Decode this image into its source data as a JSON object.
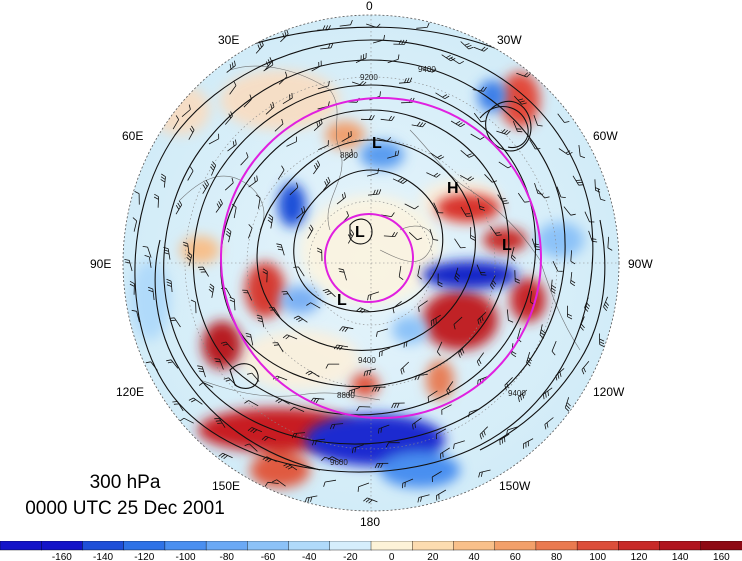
{
  "map": {
    "projection": "north-polar-stereographic",
    "level_label": "300 hPa",
    "time_label": "0000 UTC 25 Dec 2001",
    "longitude_labels": [
      "0",
      "30W",
      "60W",
      "90W",
      "120W",
      "150W",
      "180",
      "150E",
      "120E",
      "90E",
      "60E",
      "30E"
    ],
    "contour_labels": [
      "8800",
      "9200",
      "9400",
      "9600",
      "8800",
      "9400",
      "8800",
      "9400"
    ],
    "pressure_centers": [
      "H",
      "L",
      "L",
      "L",
      "L"
    ],
    "colors": {
      "circle": "#e020e0",
      "contour": "#111111",
      "coast": "#555555"
    }
  },
  "colorbar": {
    "ticks": [
      "-160",
      "-140",
      "-120",
      "-100",
      "-80",
      "-60",
      "-40",
      "-20",
      "0",
      "20",
      "40",
      "60",
      "80",
      "100",
      "120",
      "140",
      "160"
    ],
    "colors": [
      "#1414c8",
      "#1e4fd8",
      "#2e72e6",
      "#4a8ff0",
      "#6ba9f5",
      "#8cc2f8",
      "#b0dafa",
      "#d6eefc",
      "#fdf3d8",
      "#fcdcb0",
      "#f9c08a",
      "#f3a06a",
      "#ea7a50",
      "#dc4e3a",
      "#c82a28",
      "#b0141e",
      "#8e0a14"
    ]
  }
}
